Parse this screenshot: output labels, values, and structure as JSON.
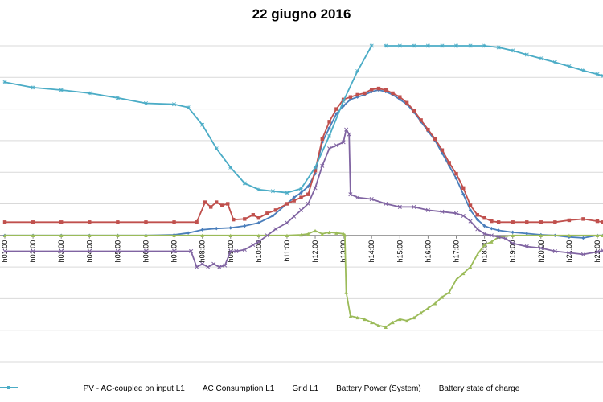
{
  "chart_data": {
    "type": "line",
    "title": "22 giugno 2016",
    "xlabel": "",
    "ylabel": "",
    "ylim": [
      -4,
      6
    ],
    "grid": true,
    "legend_position": "bottom",
    "x_ticks": [
      "h01:00",
      "h02:00",
      "h03:00",
      "h04:00",
      "h05:00",
      "h06:00",
      "h07:00",
      "h08:00",
      "h09:00",
      "h10:00",
      "h11:00",
      "h12:00",
      "h13:00",
      "h14:00",
      "h15:00",
      "h16:00",
      "h17:00",
      "h18:00",
      "h19:00",
      "h20:00",
      "h21:00",
      "h22:00"
    ],
    "x_range": [
      1,
      22.2
    ],
    "series": [
      {
        "name": "PV - AC-coupled on input L1",
        "color": "#4a7ebb",
        "marker": "diamond",
        "x": [
          1,
          2,
          3,
          4,
          5,
          6,
          7,
          7.5,
          8,
          8.5,
          9,
          9.5,
          10,
          10.5,
          11,
          11.25,
          11.5,
          11.75,
          12,
          12.25,
          12.5,
          12.75,
          13,
          13.25,
          13.5,
          13.75,
          14,
          14.25,
          14.5,
          14.75,
          15,
          15.25,
          15.5,
          15.75,
          16,
          16.25,
          16.5,
          16.75,
          17,
          17.25,
          17.5,
          17.75,
          18,
          18.25,
          18.5,
          19,
          19.5,
          20,
          20.5,
          21,
          21.5,
          22,
          22.2
        ],
        "y": [
          0,
          0,
          0,
          0,
          0,
          0,
          0.02,
          0.08,
          0.18,
          0.22,
          0.24,
          0.3,
          0.4,
          0.62,
          1.0,
          1.2,
          1.35,
          1.55,
          1.95,
          2.95,
          3.4,
          3.85,
          4.1,
          4.3,
          4.38,
          4.45,
          4.55,
          4.6,
          4.55,
          4.45,
          4.3,
          4.15,
          3.9,
          3.6,
          3.3,
          3.0,
          2.6,
          2.2,
          1.8,
          1.3,
          0.8,
          0.5,
          0.3,
          0.22,
          0.16,
          0.1,
          0.06,
          0.02,
          0,
          -0.05,
          -0.08,
          0,
          0
        ]
      },
      {
        "name": "AC Consumption L1",
        "color": "#c0504d",
        "marker": "square",
        "x": [
          1,
          2,
          3,
          4,
          5,
          6,
          7,
          7.8,
          8.1,
          8.3,
          8.5,
          8.7,
          8.9,
          9.1,
          9.5,
          9.8,
          10,
          10.3,
          10.6,
          11,
          11.25,
          11.5,
          11.75,
          12,
          12.25,
          12.5,
          12.75,
          13,
          13.25,
          13.5,
          13.75,
          14,
          14.25,
          14.5,
          14.75,
          15,
          15.25,
          15.5,
          15.75,
          16,
          16.25,
          16.5,
          16.75,
          17,
          17.25,
          17.5,
          17.75,
          18,
          18.25,
          18.5,
          19,
          19.5,
          20,
          20.5,
          21,
          21.5,
          22,
          22.2
        ],
        "y": [
          0.42,
          0.42,
          0.42,
          0.42,
          0.42,
          0.42,
          0.42,
          0.42,
          1.05,
          0.9,
          1.05,
          0.95,
          1.0,
          0.5,
          0.52,
          0.65,
          0.55,
          0.7,
          0.8,
          1.0,
          1.1,
          1.2,
          1.3,
          2.05,
          3.05,
          3.6,
          4.0,
          4.3,
          4.38,
          4.45,
          4.5,
          4.62,
          4.65,
          4.6,
          4.5,
          4.38,
          4.2,
          3.95,
          3.65,
          3.35,
          3.05,
          2.7,
          2.3,
          1.95,
          1.5,
          0.95,
          0.65,
          0.55,
          0.45,
          0.42,
          0.42,
          0.42,
          0.42,
          0.42,
          0.48,
          0.52,
          0.45,
          0.42
        ]
      },
      {
        "name": "Grid L1",
        "color": "#9bbb59",
        "marker": "triangle",
        "x": [
          1,
          2,
          3,
          4,
          5,
          6,
          7,
          8,
          9,
          10,
          11,
          11.5,
          11.75,
          12,
          12.25,
          12.5,
          12.75,
          13,
          13.05,
          13.1,
          13.25,
          13.5,
          13.75,
          14,
          14.25,
          14.5,
          14.75,
          15,
          15.25,
          15.5,
          15.75,
          16,
          16.25,
          16.5,
          16.75,
          17,
          17.25,
          17.5,
          17.75,
          18,
          18.25,
          18.5,
          19,
          20,
          21,
          22,
          22.2
        ],
        "y": [
          0,
          0,
          0,
          0,
          0,
          0,
          0,
          0,
          0,
          0,
          0,
          0.02,
          0.05,
          0.15,
          0.05,
          0.1,
          0.08,
          0.05,
          0.02,
          -1.8,
          -2.55,
          -2.6,
          -2.65,
          -2.75,
          -2.85,
          -2.9,
          -2.75,
          -2.65,
          -2.7,
          -2.6,
          -2.45,
          -2.3,
          -2.15,
          -1.95,
          -1.8,
          -1.4,
          -1.2,
          -1.0,
          -0.6,
          -0.3,
          -0.2,
          -0.05,
          0,
          0,
          0,
          0,
          0
        ]
      },
      {
        "name": "Battery Power (System)",
        "color": "#8064a2",
        "marker": "x",
        "x": [
          1,
          2,
          3,
          4,
          5,
          6,
          7,
          7.6,
          7.8,
          8.0,
          8.2,
          8.4,
          8.6,
          8.8,
          9.0,
          9.2,
          9.5,
          9.8,
          10.0,
          10.3,
          10.6,
          11.0,
          11.25,
          11.5,
          11.75,
          12.0,
          12.25,
          12.5,
          12.75,
          13.0,
          13.1,
          13.2,
          13.25,
          13.5,
          14.0,
          14.5,
          15.0,
          15.5,
          16.0,
          16.5,
          17.0,
          17.25,
          17.5,
          17.75,
          18.0,
          18.25,
          18.5,
          18.75,
          19,
          19.5,
          20,
          20.5,
          21,
          21.5,
          22,
          22.2
        ],
        "y": [
          -0.5,
          -0.5,
          -0.5,
          -0.5,
          -0.5,
          -0.5,
          -0.5,
          -0.5,
          -1.0,
          -0.9,
          -1.0,
          -0.9,
          -1.0,
          -0.95,
          -0.5,
          -0.5,
          -0.45,
          -0.3,
          -0.2,
          0.0,
          0.2,
          0.4,
          0.6,
          0.8,
          1.0,
          1.5,
          2.2,
          2.75,
          2.85,
          2.95,
          3.35,
          3.2,
          1.3,
          1.2,
          1.15,
          1.0,
          0.9,
          0.9,
          0.8,
          0.75,
          0.7,
          0.62,
          0.45,
          0.2,
          0.05,
          0.0,
          -0.05,
          -0.1,
          -0.25,
          -0.35,
          -0.4,
          -0.5,
          -0.55,
          -0.6,
          -0.52,
          -0.48
        ]
      },
      {
        "name": "Battery state of charge",
        "color": "#4bacc6",
        "marker": "asterisk",
        "x": [
          1,
          2,
          3,
          4,
          5,
          6,
          7,
          7.5,
          8,
          8.5,
          9,
          9.5,
          10,
          10.5,
          11,
          11.5,
          12,
          12.5,
          13,
          13.5,
          14,
          14.5,
          15,
          15.5,
          16,
          16.5,
          17,
          17.5,
          18,
          18.5,
          19,
          19.5,
          20,
          20.5,
          21,
          21.5,
          22,
          22.2
        ],
        "y": [
          4.85,
          4.68,
          4.6,
          4.5,
          4.35,
          4.18,
          4.15,
          4.05,
          3.5,
          2.75,
          2.15,
          1.65,
          1.45,
          1.4,
          1.35,
          1.48,
          2.15,
          3.15,
          4.25,
          5.2,
          6.0,
          6.0,
          6.0,
          6.0,
          6.0,
          6.0,
          6.0,
          6.0,
          6.0,
          5.95,
          5.85,
          5.72,
          5.6,
          5.48,
          5.35,
          5.22,
          5.1,
          5.05
        ]
      }
    ]
  }
}
